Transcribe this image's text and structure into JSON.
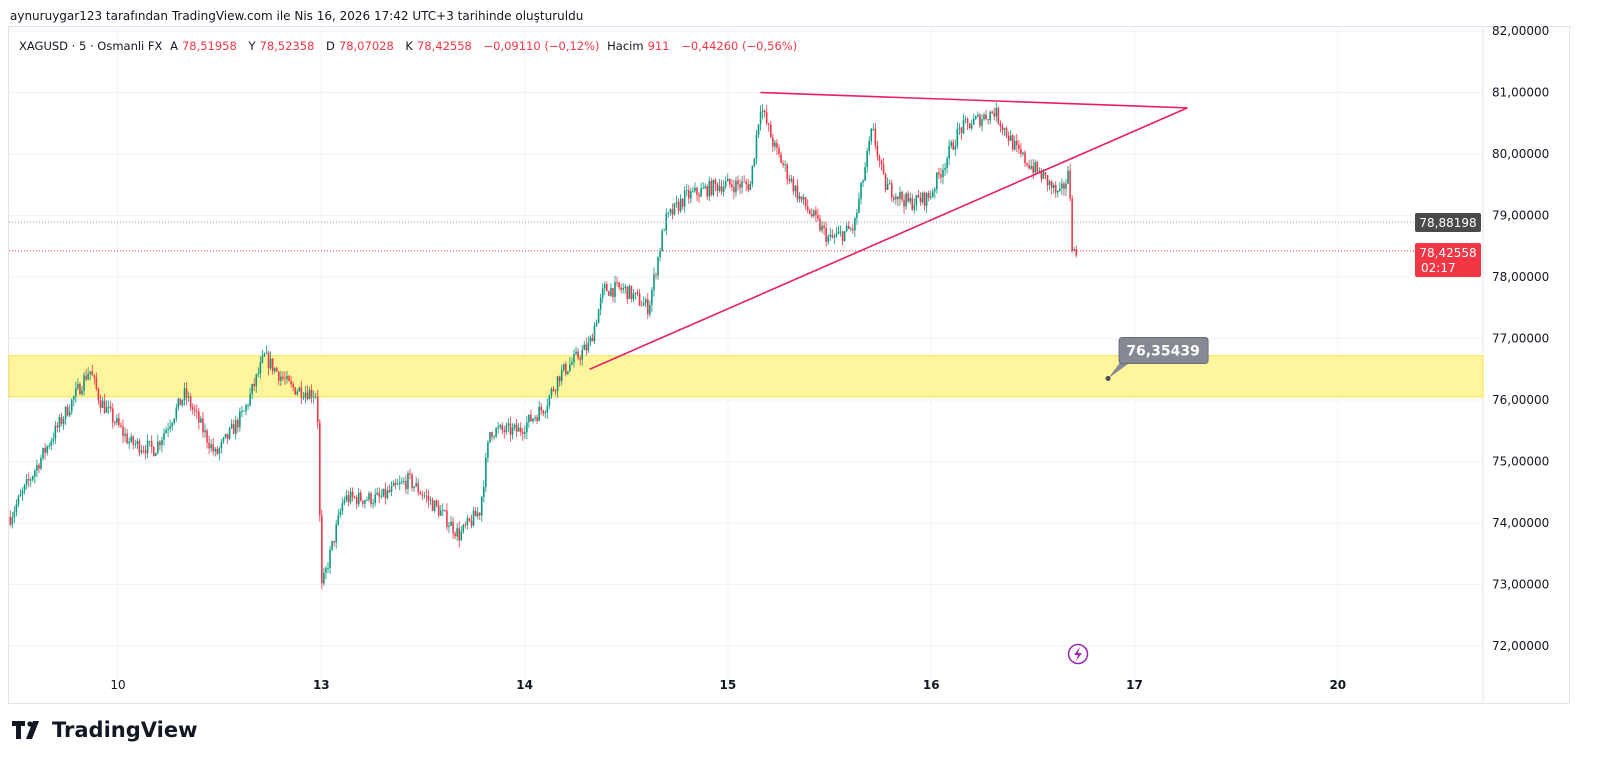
{
  "credit": "aynuruygar123 tarafından TradingView.com ile Nis 16, 2026 17:42 UTC+3 tarihinde oluşturuldu",
  "legend": {
    "symbol": "XAGUSD · 5 · Osmanli FX",
    "open_label": "A",
    "open": "78,51958",
    "high_label": "Y",
    "high": "78,52358",
    "low_label": "D",
    "low": "78,07028",
    "close_label": "K",
    "close": "78,42558",
    "change": "−0,09110 (−0,12%)",
    "volume_label": "Hacim",
    "volume": "911",
    "volume_change": "−0,44260 (−0,56%)"
  },
  "brand": "TradingView",
  "colors": {
    "up": "#089981",
    "down": "#f23645",
    "trend": "#e91e63",
    "zone": "#fff59d",
    "zone_border": "#f9e04b",
    "callout": "#868993"
  },
  "chart_data": {
    "type": "candlestick",
    "ylim": [
      71.4,
      82.0
    ],
    "y_ticks": [
      "72,00000",
      "73,00000",
      "74,00000",
      "75,00000",
      "76,00000",
      "77,00000",
      "78,00000",
      "79,00000",
      "80,00000",
      "81,00000",
      "82,00000"
    ],
    "y_tick_values": [
      72,
      73,
      74,
      75,
      76,
      77,
      78,
      79,
      80,
      81,
      82
    ],
    "x_ticks": [
      "10",
      "13",
      "14",
      "15",
      "16",
      "17",
      "20"
    ],
    "x_tick_positions": [
      0,
      1,
      2,
      3,
      4,
      5,
      6
    ],
    "xlim": [
      -0.53,
      6.71
    ],
    "price_path": [
      [
        -0.53,
        74.1
      ],
      [
        -0.34,
        75.3
      ],
      [
        -0.14,
        76.5
      ],
      [
        -0.09,
        76.0
      ],
      [
        0.06,
        75.3
      ],
      [
        0.18,
        75.2
      ],
      [
        0.33,
        76.1
      ],
      [
        0.48,
        75.1
      ],
      [
        0.62,
        75.8
      ],
      [
        0.72,
        76.7
      ],
      [
        0.85,
        76.2
      ],
      [
        0.98,
        76.1
      ],
      [
        1.0,
        72.9
      ],
      [
        1.11,
        74.4
      ],
      [
        1.29,
        74.4
      ],
      [
        1.43,
        74.7
      ],
      [
        1.58,
        74.2
      ],
      [
        1.68,
        73.8
      ],
      [
        1.78,
        74.2
      ],
      [
        1.83,
        75.5
      ],
      [
        1.97,
        75.5
      ],
      [
        2.1,
        75.9
      ],
      [
        2.17,
        76.4
      ],
      [
        2.32,
        76.9
      ],
      [
        2.39,
        77.8
      ],
      [
        2.49,
        77.8
      ],
      [
        2.61,
        77.5
      ],
      [
        2.69,
        78.9
      ],
      [
        2.79,
        79.3
      ],
      [
        2.96,
        79.5
      ],
      [
        3.11,
        79.5
      ],
      [
        3.16,
        80.8
      ],
      [
        3.23,
        80.1
      ],
      [
        3.35,
        79.3
      ],
      [
        3.5,
        78.6
      ],
      [
        3.62,
        78.8
      ],
      [
        3.71,
        80.4
      ],
      [
        3.77,
        79.5
      ],
      [
        3.89,
        79.2
      ],
      [
        3.99,
        79.3
      ],
      [
        4.14,
        80.4
      ],
      [
        4.31,
        80.7
      ],
      [
        4.43,
        80.0
      ],
      [
        4.56,
        79.6
      ],
      [
        4.63,
        79.3
      ],
      [
        4.68,
        79.7
      ],
      [
        4.69,
        78.6
      ],
      [
        4.71,
        78.3
      ],
      [
        4.72,
        78.43
      ]
    ],
    "last_price": "78,42558",
    "countdown": "02:17",
    "crosshair_price": "78,88198",
    "trendlines": [
      {
        "name": "upper",
        "from": [
          3.16,
          81.0
        ],
        "to": [
          5.26,
          80.75
        ]
      },
      {
        "name": "lower",
        "from": [
          2.32,
          76.5
        ],
        "to": [
          5.26,
          80.75
        ]
      }
    ],
    "zone": {
      "low": 76.05,
      "high": 76.72
    },
    "callout": {
      "x": 4.87,
      "price": 76.35,
      "label": "76,35439"
    }
  }
}
